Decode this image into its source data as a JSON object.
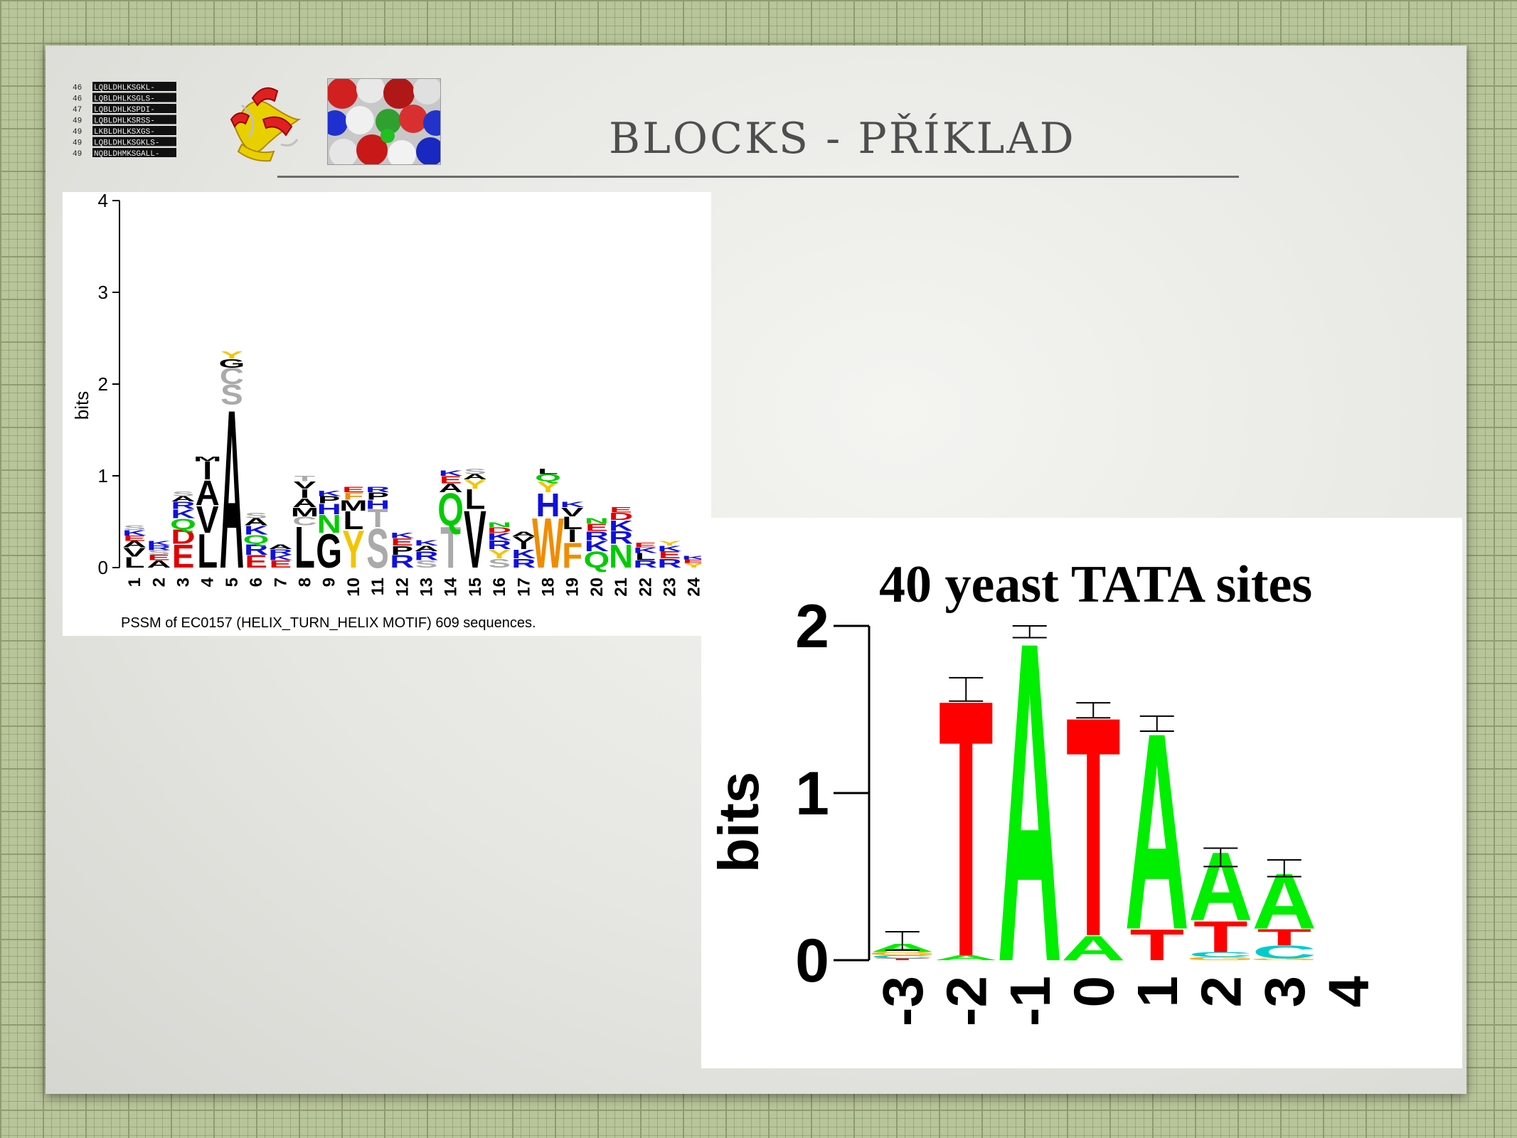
{
  "slide": {
    "title": "BLOCKS - PŘÍKLAD"
  },
  "thumbnails": {
    "alignment_rows": [
      {
        "num": "46",
        "seq": "LQBLDHLKSGKL-"
      },
      {
        "num": "46",
        "seq": "LQBLDHLKSGLS-"
      },
      {
        "num": "47",
        "seq": "LQBLDHLKSPDI-"
      },
      {
        "num": "49",
        "seq": "LQBLDHLKSRSS-"
      },
      {
        "num": "49",
        "seq": "LKBLDHLKSXGS-"
      },
      {
        "num": "49",
        "seq": "LQBLDHLKSGKLS-"
      },
      {
        "num": "49",
        "seq": "NQBLDHMKSGALL-"
      }
    ]
  },
  "colors": {
    "A": "#000000",
    "G": "#000000",
    "P": "#000000",
    "S": "#aaaaaa",
    "T": "#aaaaaa",
    "C": "#aaaaaa",
    "Y": "#f4c400",
    "W": "#f08c00",
    "F": "#f08c00",
    "L": "#000000",
    "I": "#000000",
    "V": "#000000",
    "M": "#000000",
    "D": "#e00000",
    "E": "#e00000",
    "K": "#1010dd",
    "R": "#1010dd",
    "H": "#1010dd",
    "N": "#00cc00",
    "Q": "#00cc00",
    "dna_T": "#ff0000",
    "dna_A": "#00ee00",
    "dna_C": "#00cccc",
    "dna_G": "#ffaa00"
  },
  "chart_data": [
    {
      "type": "sequence_logo",
      "ylabel": "bits",
      "ylim": [
        0,
        4
      ],
      "yticks": [
        0,
        1,
        2,
        3,
        4
      ],
      "x": [
        1,
        2,
        3,
        4,
        5,
        6,
        7,
        8,
        9,
        10,
        11,
        12,
        13,
        14,
        15,
        16,
        17,
        18,
        19,
        20,
        21,
        22,
        23,
        24
      ],
      "caption": "PSSM of EC0157 (HELIX_TURN_HELIX MOTIF) 609 sequences.",
      "positions": [
        {
          "pos": 1,
          "letters": [
            [
              "L",
              0.12
            ],
            [
              "V",
              0.1
            ],
            [
              "A",
              0.07
            ],
            [
              "E",
              0.06
            ],
            [
              "K",
              0.06
            ],
            [
              "S",
              0.05
            ]
          ]
        },
        {
          "pos": 2,
          "letters": [
            [
              "A",
              0.08
            ],
            [
              "E",
              0.06
            ],
            [
              "S",
              0.05
            ],
            [
              "R",
              0.05
            ],
            [
              "K",
              0.05
            ]
          ]
        },
        {
          "pos": 3,
          "letters": [
            [
              "E",
              0.26
            ],
            [
              "D",
              0.16
            ],
            [
              "Q",
              0.12
            ],
            [
              "K",
              0.1
            ],
            [
              "R",
              0.08
            ],
            [
              "A",
              0.06
            ],
            [
              "S",
              0.05
            ]
          ]
        },
        {
          "pos": 4,
          "letters": [
            [
              "L",
              0.38
            ],
            [
              "V",
              0.3
            ],
            [
              "A",
              0.28
            ],
            [
              "I",
              0.2
            ],
            [
              "M",
              0.05
            ]
          ]
        },
        {
          "pos": 5,
          "letters": [
            [
              "A",
              1.78
            ],
            [
              "S",
              0.22
            ],
            [
              "C",
              0.18
            ],
            [
              "G",
              0.1
            ],
            [
              "Y",
              0.08
            ]
          ]
        },
        {
          "pos": 6,
          "letters": [
            [
              "E",
              0.14
            ],
            [
              "R",
              0.12
            ],
            [
              "Q",
              0.1
            ],
            [
              "K",
              0.1
            ],
            [
              "A",
              0.08
            ],
            [
              "S",
              0.06
            ]
          ]
        },
        {
          "pos": 7,
          "letters": [
            [
              "E",
              0.08
            ],
            [
              "K",
              0.06
            ],
            [
              "R",
              0.06
            ],
            [
              "A",
              0.05
            ]
          ]
        },
        {
          "pos": 8,
          "letters": [
            [
              "L",
              0.46
            ],
            [
              "C",
              0.1
            ],
            [
              "M",
              0.1
            ],
            [
              "A",
              0.1
            ],
            [
              "I",
              0.1
            ],
            [
              "V",
              0.08
            ],
            [
              "T",
              0.06
            ]
          ]
        },
        {
          "pos": 9,
          "letters": [
            [
              "G",
              0.38
            ],
            [
              "N",
              0.2
            ],
            [
              "H",
              0.12
            ],
            [
              "P",
              0.08
            ],
            [
              "K",
              0.06
            ]
          ]
        },
        {
          "pos": 10,
          "letters": [
            [
              "Y",
              0.42
            ],
            [
              "L",
              0.2
            ],
            [
              "M",
              0.12
            ],
            [
              "F",
              0.08
            ],
            [
              "E",
              0.06
            ]
          ]
        },
        {
          "pos": 11,
          "letters": [
            [
              "S",
              0.44
            ],
            [
              "T",
              0.2
            ],
            [
              "H",
              0.1
            ],
            [
              "P",
              0.08
            ],
            [
              "R",
              0.06
            ]
          ]
        },
        {
          "pos": 12,
          "letters": [
            [
              "R",
              0.14
            ],
            [
              "P",
              0.1
            ],
            [
              "E",
              0.08
            ],
            [
              "K",
              0.06
            ]
          ]
        },
        {
          "pos": 13,
          "letters": [
            [
              "S",
              0.08
            ],
            [
              "R",
              0.1
            ],
            [
              "A",
              0.06
            ],
            [
              "K",
              0.06
            ]
          ]
        },
        {
          "pos": 14,
          "letters": [
            [
              "T",
              0.46
            ],
            [
              "Q",
              0.36
            ],
            [
              "A",
              0.1
            ],
            [
              "E",
              0.08
            ],
            [
              "K",
              0.06
            ]
          ]
        },
        {
          "pos": 15,
          "letters": [
            [
              "V",
              0.64
            ],
            [
              "L",
              0.22
            ],
            [
              "Y",
              0.1
            ],
            [
              "A",
              0.06
            ],
            [
              "S",
              0.06
            ]
          ]
        },
        {
          "pos": 16,
          "letters": [
            [
              "S",
              0.1
            ],
            [
              "Y",
              0.1
            ],
            [
              "R",
              0.1
            ],
            [
              "K",
              0.08
            ],
            [
              "D",
              0.06
            ],
            [
              "N",
              0.05
            ]
          ]
        },
        {
          "pos": 17,
          "letters": [
            [
              "R",
              0.1
            ],
            [
              "K",
              0.1
            ],
            [
              "I",
              0.08
            ],
            [
              "V",
              0.06
            ],
            [
              "A",
              0.05
            ]
          ]
        },
        {
          "pos": 18,
          "letters": [
            [
              "W",
              0.56
            ],
            [
              "H",
              0.26
            ],
            [
              "Y",
              0.12
            ],
            [
              "Q",
              0.08
            ],
            [
              "L",
              0.06
            ]
          ]
        },
        {
          "pos": 19,
          "letters": [
            [
              "F",
              0.28
            ],
            [
              "I",
              0.14
            ],
            [
              "L",
              0.14
            ],
            [
              "V",
              0.1
            ],
            [
              "K",
              0.06
            ]
          ]
        },
        {
          "pos": 20,
          "letters": [
            [
              "Q",
              0.18
            ],
            [
              "K",
              0.12
            ],
            [
              "R",
              0.1
            ],
            [
              "E",
              0.08
            ],
            [
              "N",
              0.06
            ]
          ]
        },
        {
          "pos": 21,
          "letters": [
            [
              "N",
              0.26
            ],
            [
              "R",
              0.14
            ],
            [
              "K",
              0.12
            ],
            [
              "D",
              0.08
            ],
            [
              "E",
              0.06
            ]
          ]
        },
        {
          "pos": 22,
          "letters": [
            [
              "R",
              0.08
            ],
            [
              "L",
              0.08
            ],
            [
              "K",
              0.06
            ],
            [
              "E",
              0.05
            ]
          ]
        },
        {
          "pos": 23,
          "letters": [
            [
              "R",
              0.1
            ],
            [
              "E",
              0.08
            ],
            [
              "K",
              0.06
            ],
            [
              "Y",
              0.05
            ]
          ]
        },
        {
          "pos": 24,
          "letters": [
            [
              "Y",
              0.05
            ],
            [
              "E",
              0.04
            ],
            [
              "K",
              0.04
            ]
          ]
        }
      ]
    },
    {
      "type": "sequence_logo",
      "title": "40 yeast TATA sites",
      "ylabel": "bits",
      "ylim": [
        0,
        2
      ],
      "yticks": [
        0,
        1,
        2
      ],
      "x": [
        "-3",
        "-2",
        "-1",
        "0",
        "1",
        "2",
        "3",
        "4"
      ],
      "positions": [
        {
          "pos": "-3",
          "letters": [
            [
              "T",
              0.01
            ],
            [
              "C",
              0.02
            ],
            [
              "G",
              0.02
            ],
            [
              "A",
              0.05
            ]
          ],
          "error_top": 0.17,
          "error_bottom": 0.06
        },
        {
          "pos": "-2",
          "letters": [
            [
              "A",
              0.03
            ],
            [
              "T",
              1.58
            ]
          ],
          "error_top": 1.69,
          "error_bottom": 1.55
        },
        {
          "pos": "-1",
          "letters": [
            [
              "A",
              1.97
            ]
          ],
          "error_top": 2.0,
          "error_bottom": 1.93
        },
        {
          "pos": "0",
          "letters": [
            [
              "A",
              0.15
            ],
            [
              "T",
              1.35
            ]
          ],
          "error_top": 1.54,
          "error_bottom": 1.45
        },
        {
          "pos": "1",
          "letters": [
            [
              "T",
              0.19
            ],
            [
              "A",
              1.21
            ]
          ],
          "error_top": 1.46,
          "error_bottom": 1.37
        },
        {
          "pos": "2",
          "letters": [
            [
              "G",
              0.02
            ],
            [
              "C",
              0.03
            ],
            [
              "T",
              0.19
            ],
            [
              "A",
              0.42
            ]
          ],
          "error_top": 0.67,
          "error_bottom": 0.56
        },
        {
          "pos": "3",
          "letters": [
            [
              "G",
              0.01
            ],
            [
              "C",
              0.08
            ],
            [
              "T",
              0.1
            ],
            [
              "A",
              0.34
            ]
          ],
          "error_top": 0.6,
          "error_bottom": 0.5
        },
        {
          "pos": "4",
          "letters": [],
          "error_top": null,
          "error_bottom": null
        }
      ]
    }
  ]
}
